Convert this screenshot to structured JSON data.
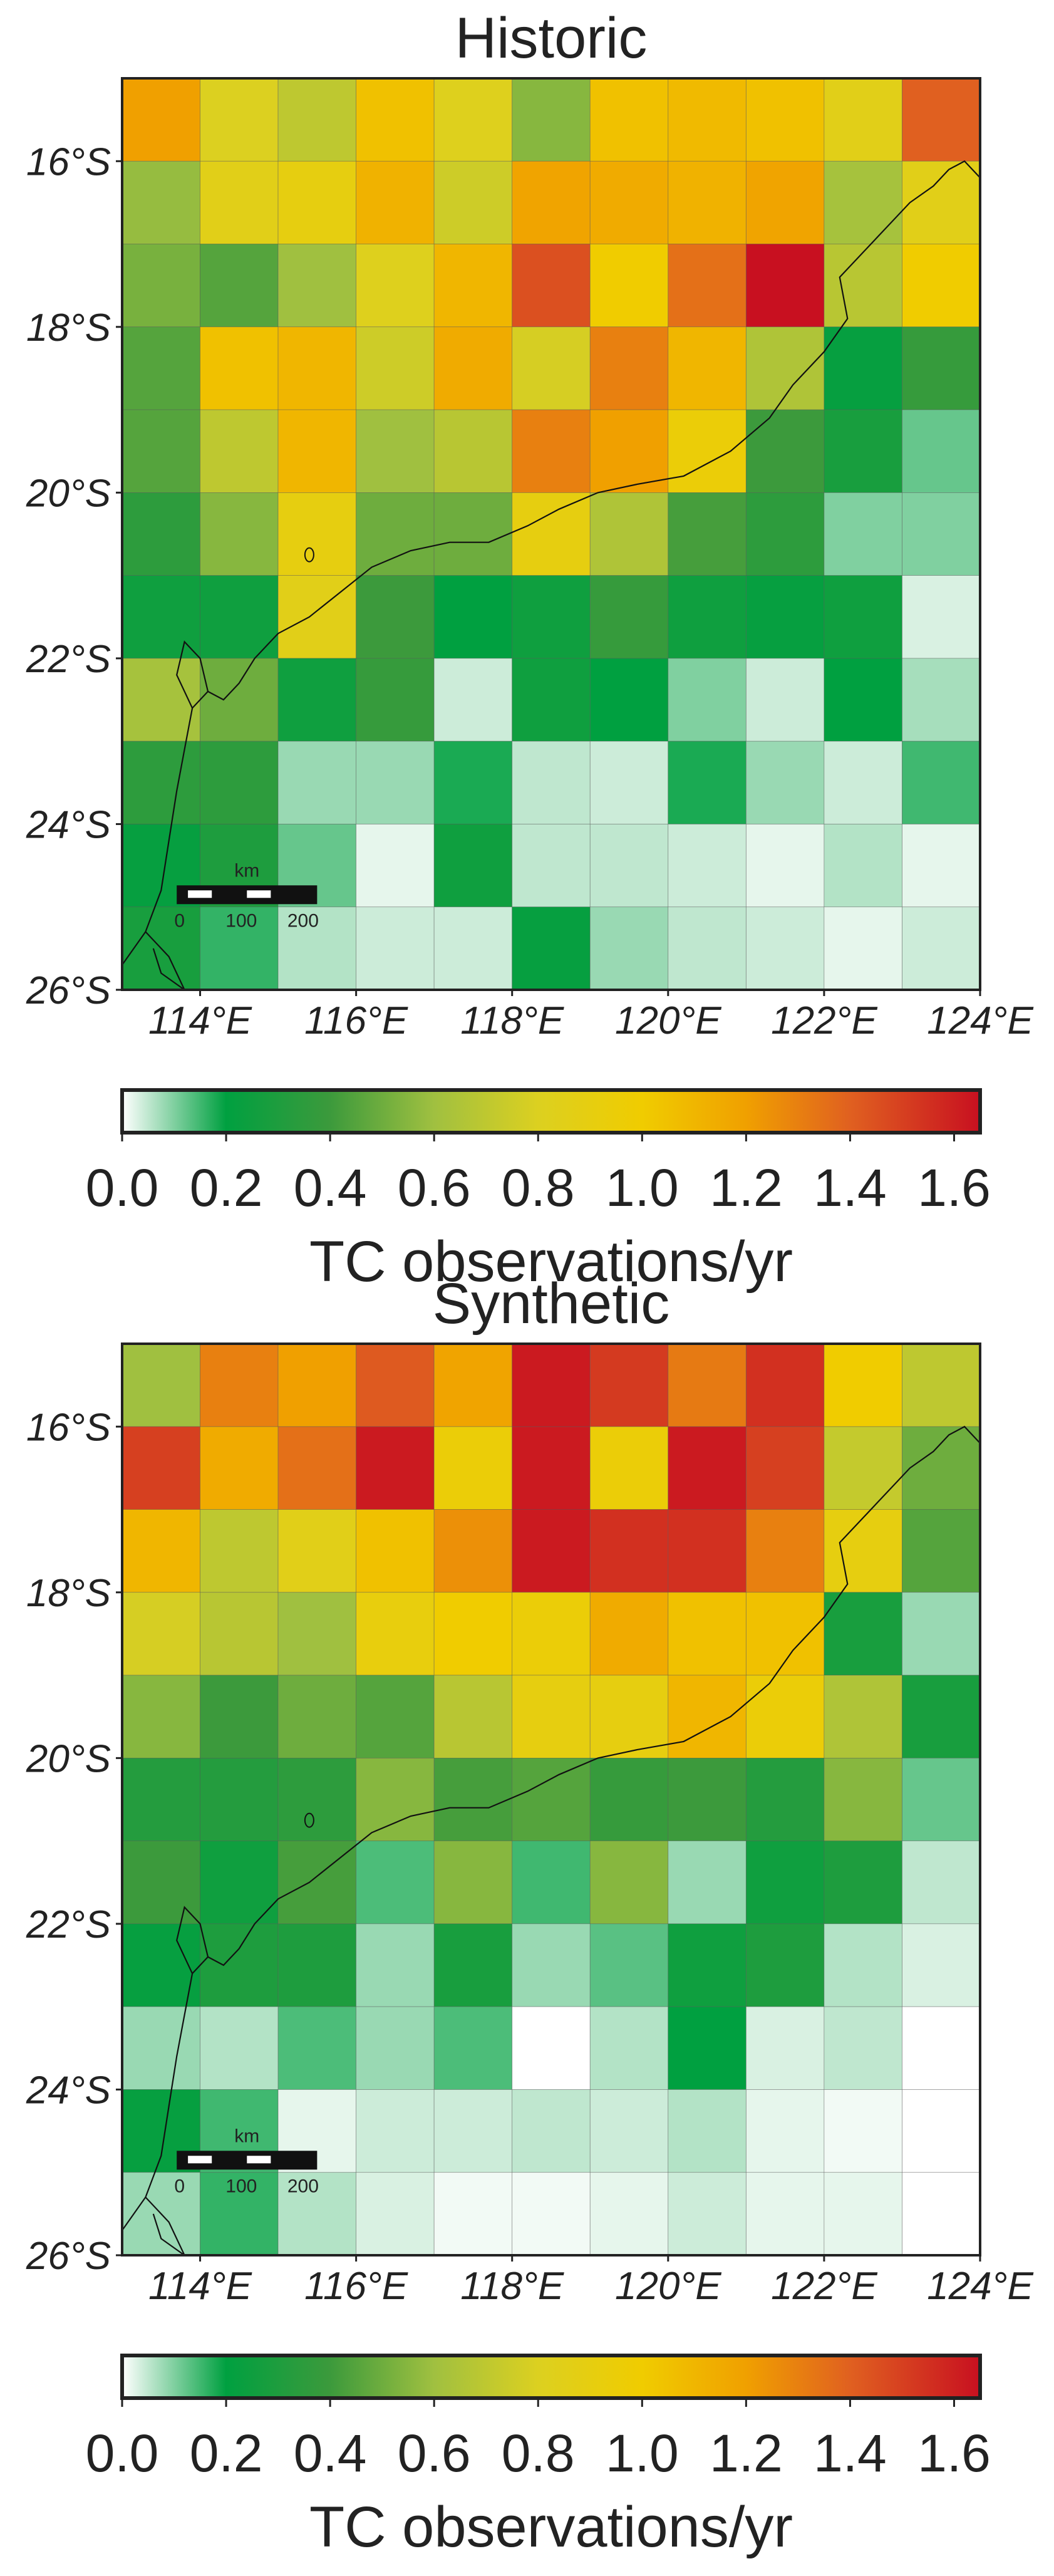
{
  "figure": {
    "x_tick_labels": [
      "114°E",
      "116°E",
      "118°E",
      "120°E",
      "122°E",
      "124°E"
    ],
    "y_tick_labels": [
      "16°S",
      "18°S",
      "20°S",
      "22°S",
      "24°S",
      "26°S"
    ],
    "colorbar": {
      "label": "TC observations/yr",
      "tick_labels": [
        "0.0",
        "0.2",
        "0.4",
        "0.6",
        "0.8",
        "1.0",
        "1.2",
        "1.4",
        "1.6"
      ],
      "range": [
        0,
        1.65
      ],
      "stops": [
        {
          "v": 0.0,
          "c": "#ffffff"
        },
        {
          "v": 0.2,
          "c": "#00a040"
        },
        {
          "v": 0.4,
          "c": "#3c9a3c"
        },
        {
          "v": 0.6,
          "c": "#a0c040"
        },
        {
          "v": 0.8,
          "c": "#dcd020"
        },
        {
          "v": 1.0,
          "c": "#f0cc00"
        },
        {
          "v": 1.2,
          "c": "#f0a000"
        },
        {
          "v": 1.4,
          "c": "#e06020"
        },
        {
          "v": 1.65,
          "c": "#c81020"
        }
      ]
    },
    "scale_bar": {
      "unit": "km",
      "tick_labels": [
        "0",
        "100",
        "200"
      ]
    }
  },
  "chart_data": [
    {
      "type": "heatmap",
      "title": "Historic",
      "xlabel": "",
      "ylabel": "",
      "x_range": [
        113,
        124
      ],
      "y_range": [
        -26,
        -15
      ],
      "cell_size_deg": 1,
      "rows_from_north": [
        [
          1.2,
          0.8,
          0.7,
          1.05,
          0.82,
          0.55,
          1.05,
          1.08,
          1.05,
          0.85,
          1.4
        ],
        [
          0.58,
          0.85,
          0.9,
          1.12,
          0.75,
          1.18,
          1.15,
          1.12,
          1.18,
          0.62,
          0.85
        ],
        [
          0.52,
          0.45,
          0.6,
          0.82,
          1.1,
          1.45,
          1.0,
          1.35,
          1.65,
          0.68,
          1.0
        ],
        [
          0.45,
          1.05,
          1.1,
          0.75,
          1.15,
          0.78,
          1.3,
          1.1,
          0.65,
          0.22,
          0.38
        ],
        [
          0.45,
          0.7,
          1.1,
          0.6,
          0.68,
          1.3,
          1.2,
          0.95,
          0.4,
          0.28,
          0.12
        ],
        [
          0.35,
          0.55,
          0.9,
          0.5,
          0.5,
          0.9,
          0.65,
          0.42,
          0.35,
          0.1,
          0.1
        ],
        [
          0.25,
          0.25,
          0.85,
          0.4,
          0.2,
          0.25,
          0.38,
          0.25,
          0.22,
          0.25,
          0.03
        ],
        [
          0.62,
          0.5,
          0.25,
          0.38,
          0.04,
          0.25,
          0.2,
          0.1,
          0.04,
          0.2,
          0.07
        ],
        [
          0.35,
          0.35,
          0.08,
          0.08,
          0.18,
          0.05,
          0.04,
          0.18,
          0.08,
          0.04,
          0.15
        ],
        [
          0.22,
          0.3,
          0.12,
          0.02,
          0.25,
          0.05,
          0.05,
          0.04,
          0.02,
          0.06,
          0.02
        ],
        [
          0.28,
          0.16,
          0.06,
          0.04,
          0.04,
          0.22,
          0.08,
          0.05,
          0.04,
          0.02,
          0.04
        ]
      ]
    },
    {
      "type": "heatmap",
      "title": "Synthetic",
      "xlabel": "",
      "ylabel": "",
      "x_range": [
        113,
        124
      ],
      "y_range": [
        -26,
        -15
      ],
      "cell_size_deg": 1,
      "rows_from_north": [
        [
          0.6,
          1.3,
          1.2,
          1.42,
          1.18,
          1.62,
          1.52,
          1.32,
          1.55,
          1.0,
          0.7
        ],
        [
          1.5,
          1.15,
          1.35,
          1.62,
          0.95,
          1.62,
          0.95,
          1.62,
          1.5,
          0.72,
          0.5
        ],
        [
          1.1,
          0.7,
          0.85,
          1.05,
          1.25,
          1.62,
          1.55,
          1.55,
          1.3,
          0.9,
          0.45
        ],
        [
          0.78,
          0.68,
          0.6,
          0.92,
          1.0,
          0.95,
          1.15,
          1.05,
          1.05,
          0.28,
          0.08
        ],
        [
          0.55,
          0.4,
          0.5,
          0.45,
          0.68,
          0.9,
          0.9,
          1.1,
          0.95,
          0.65,
          0.28
        ],
        [
          0.32,
          0.32,
          0.35,
          0.55,
          0.42,
          0.45,
          0.38,
          0.4,
          0.32,
          0.55,
          0.12
        ],
        [
          0.4,
          0.25,
          0.42,
          0.14,
          0.55,
          0.15,
          0.55,
          0.08,
          0.25,
          0.3,
          0.05
        ],
        [
          0.22,
          0.3,
          0.3,
          0.08,
          0.28,
          0.08,
          0.13,
          0.25,
          0.3,
          0.06,
          0.03
        ],
        [
          0.08,
          0.06,
          0.14,
          0.08,
          0.14,
          0.0,
          0.06,
          0.2,
          0.03,
          0.05,
          0.0
        ],
        [
          0.22,
          0.15,
          0.02,
          0.04,
          0.04,
          0.05,
          0.04,
          0.06,
          0.02,
          0.01,
          0.0
        ],
        [
          0.08,
          0.16,
          0.06,
          0.03,
          0.01,
          0.01,
          0.02,
          0.04,
          0.02,
          0.02,
          0.0
        ]
      ]
    }
  ]
}
